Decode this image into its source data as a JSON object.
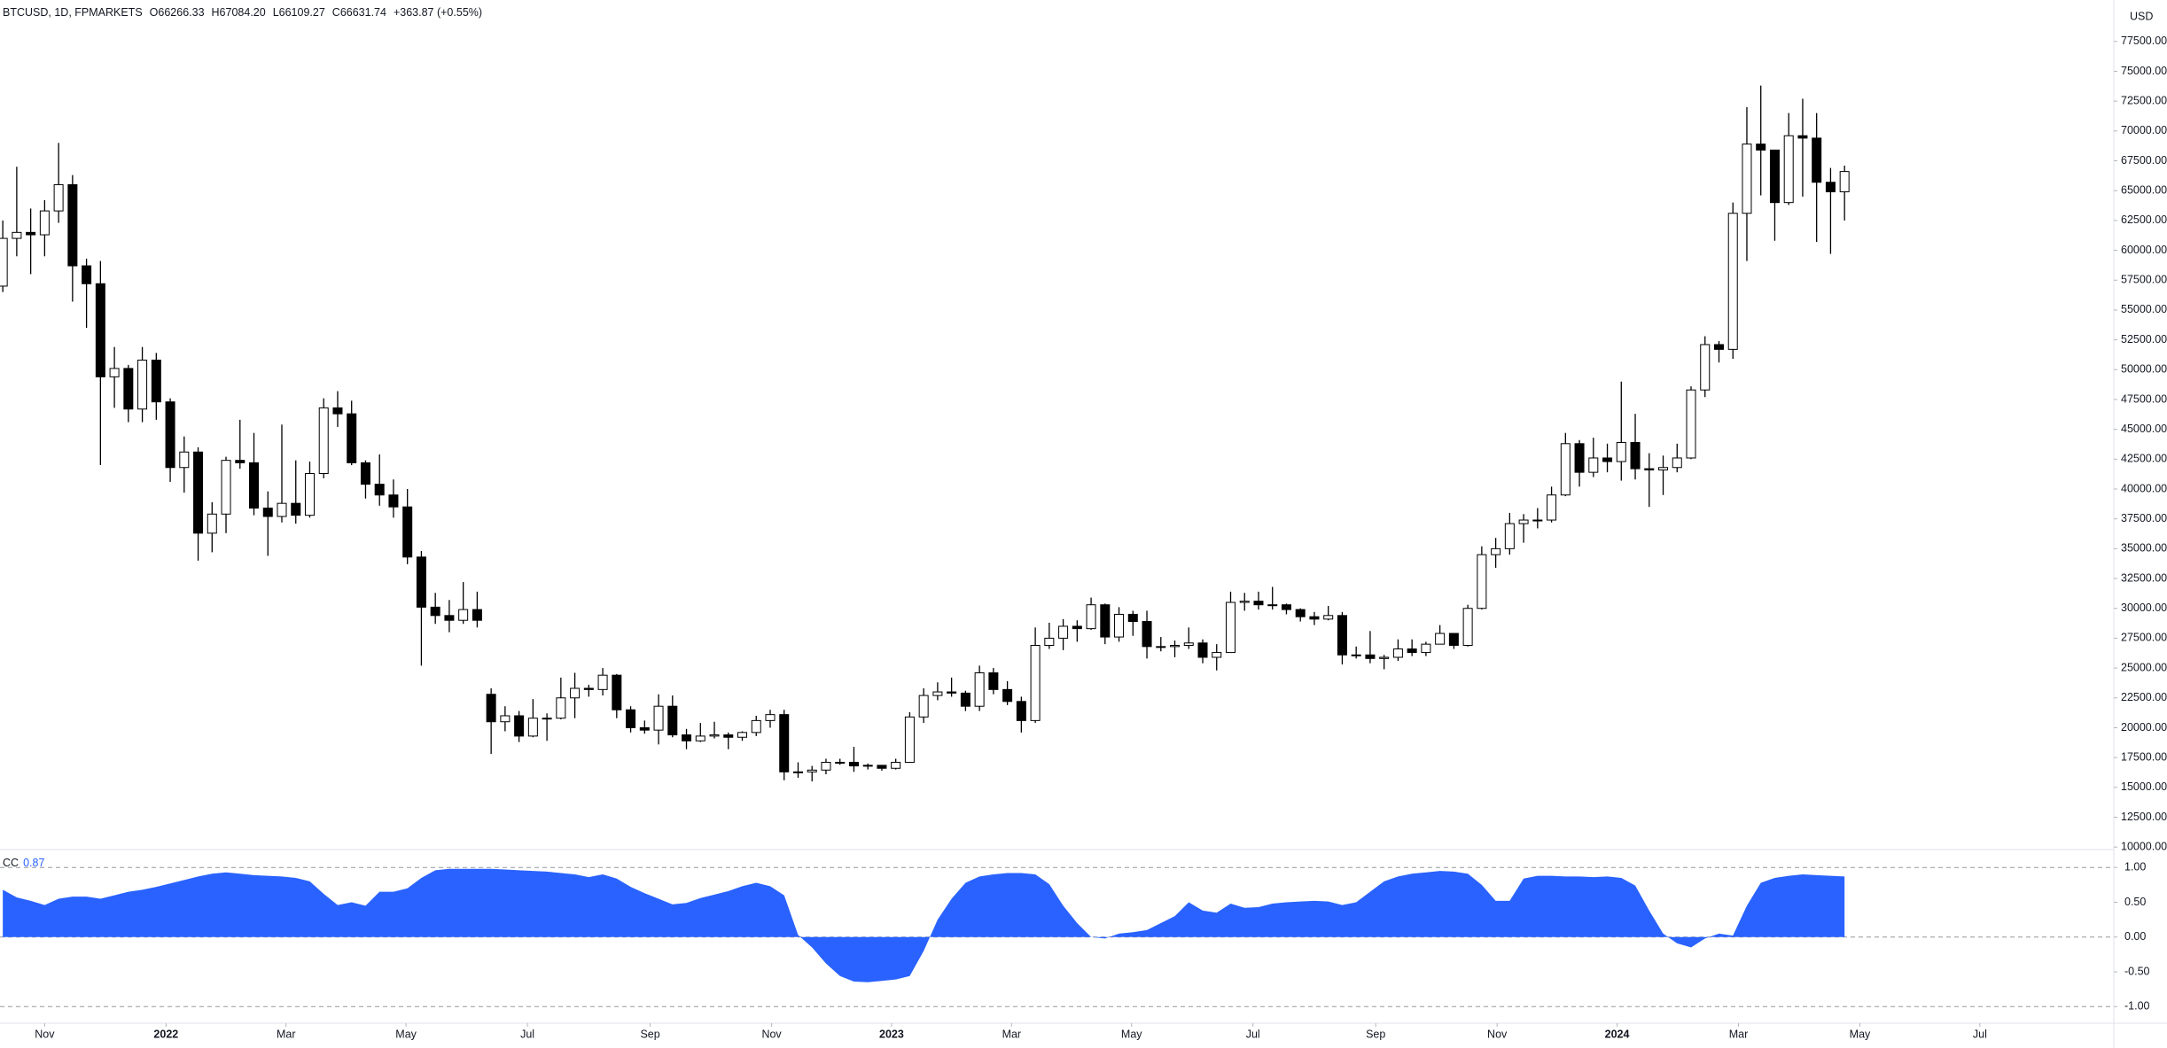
{
  "chart_data": [
    {
      "type": "candlestick",
      "symbol": "BTCUSD, 1D, FPMARKETS",
      "ohlc_text": [
        "O66266.33",
        "H67084.20",
        "L66109.27",
        "C66631.74",
        "+363.87 (+0.55%)"
      ],
      "currency": "USD",
      "up_color": "#ffffff",
      "down_color": "#000000",
      "wick_color": "#000000",
      "open": [
        57000,
        61000,
        61500,
        61300,
        63300,
        65500,
        58700,
        57200,
        49400,
        50100,
        46700,
        50800,
        47300,
        41800,
        43100,
        36300,
        37900,
        42400,
        42200,
        38400,
        37700,
        38800,
        37800,
        41300,
        46800,
        46300,
        42200,
        40400,
        39500,
        38500,
        34300,
        30100,
        29400,
        29000,
        29900,
        22800,
        20500,
        21000,
        19300,
        20800,
        20800,
        22500,
        23300,
        23200,
        24400,
        21500,
        20000,
        19800,
        21800,
        19400,
        18900,
        19300,
        19400,
        19200,
        19600,
        20600,
        21100,
        16300,
        16300,
        16450,
        17100,
        17100,
        16800,
        16850,
        16600,
        17100,
        20900,
        22700,
        23000,
        22900,
        21800,
        24600,
        23200,
        22200,
        20600,
        26900,
        27500,
        28500,
        28300,
        30300,
        27600,
        29500,
        28900,
        26800,
        26800,
        26900,
        27100,
        25900,
        26300,
        30500,
        30600,
        30300,
        30300,
        29900,
        29300,
        29100,
        29400,
        26100,
        26100,
        25800,
        25900,
        26600,
        26300,
        27000,
        27900,
        26900,
        30000,
        34500,
        35000,
        37100,
        37400,
        37400,
        39500,
        43800,
        41400,
        42600,
        42300,
        43900,
        41700,
        41600,
        41800,
        42600,
        48300,
        52100,
        51700,
        63100,
        68900,
        68400,
        64000,
        69600,
        69400,
        65700,
        64900
      ],
      "high": [
        62500,
        67000,
        63500,
        64200,
        69000,
        66300,
        59300,
        59100,
        51900,
        50400,
        51900,
        51400,
        47600,
        44400,
        43500,
        38900,
        42700,
        45800,
        44700,
        39800,
        45400,
        42400,
        42300,
        47600,
        48200,
        47400,
        42400,
        42900,
        40800,
        40000,
        34800,
        31300,
        30700,
        32200,
        31400,
        23300,
        21800,
        21400,
        22400,
        21200,
        24200,
        24600,
        23600,
        25000,
        24500,
        21800,
        20600,
        22800,
        22700,
        19900,
        20400,
        20500,
        19600,
        19700,
        21000,
        21500,
        21500,
        17100,
        16800,
        17400,
        17400,
        18400,
        17000,
        16800,
        17400,
        21300,
        23300,
        23800,
        24200,
        23100,
        25200,
        25000,
        23900,
        22600,
        28400,
        28800,
        29100,
        29000,
        30900,
        30400,
        30100,
        29800,
        29800,
        27600,
        27300,
        28400,
        27400,
        27000,
        31400,
        31300,
        31400,
        31800,
        30400,
        30000,
        29700,
        30200,
        29700,
        26800,
        28100,
        26100,
        27400,
        27400,
        27200,
        28600,
        27900,
        30300,
        35200,
        35900,
        38000,
        37900,
        38400,
        40200,
        44700,
        44100,
        44300,
        43800,
        49000,
        46300,
        43000,
        42800,
        43800,
        48600,
        52800,
        52400,
        64000,
        72000,
        73800,
        68100,
        71500,
        72700,
        71500,
        66900,
        67100
      ],
      "low": [
        56500,
        59500,
        58000,
        59500,
        62300,
        55700,
        53500,
        42000,
        46800,
        45600,
        45600,
        45800,
        40600,
        39700,
        34000,
        34700,
        36300,
        41700,
        37800,
        34400,
        37200,
        37100,
        37600,
        40900,
        45200,
        42000,
        39200,
        38600,
        37600,
        33700,
        25200,
        28700,
        28000,
        28700,
        28400,
        17800,
        19700,
        18800,
        19200,
        18900,
        20700,
        20800,
        22600,
        22700,
        20800,
        19600,
        19500,
        18600,
        19200,
        18200,
        18800,
        19100,
        18200,
        18900,
        19300,
        20000,
        15600,
        15800,
        15500,
        16100,
        16900,
        16300,
        16500,
        16400,
        16500,
        17100,
        20400,
        22300,
        22600,
        21400,
        21400,
        22800,
        21900,
        19600,
        20400,
        26600,
        26500,
        27200,
        28200,
        27000,
        27200,
        27700,
        25800,
        26400,
        25900,
        26600,
        25400,
        24800,
        26300,
        29800,
        29900,
        29900,
        29500,
        28900,
        28600,
        29000,
        25300,
        25800,
        25400,
        24900,
        25600,
        26000,
        26000,
        27000,
        26600,
        26800,
        29900,
        33400,
        34500,
        35500,
        36700,
        37200,
        39400,
        40200,
        41000,
        41400,
        40700,
        40800,
        38500,
        39500,
        41400,
        42500,
        47700,
        50600,
        50900,
        59100,
        64600,
        60800,
        63800,
        64500,
        60700,
        59700,
        62500
      ],
      "close": [
        61000,
        61500,
        61300,
        63300,
        65500,
        58700,
        57200,
        49400,
        50100,
        46700,
        50800,
        47300,
        41800,
        43100,
        36300,
        37900,
        42400,
        42200,
        38400,
        37700,
        38800,
        37800,
        41300,
        46800,
        46300,
        42200,
        40400,
        39500,
        38500,
        34300,
        30100,
        29400,
        29000,
        29900,
        29000,
        20500,
        21000,
        19300,
        20800,
        20800,
        22500,
        23300,
        23200,
        24400,
        21500,
        20000,
        19800,
        21800,
        19400,
        18900,
        19300,
        19400,
        19200,
        19600,
        20600,
        21100,
        16300,
        16300,
        16450,
        17100,
        17100,
        16800,
        16850,
        16600,
        17100,
        20900,
        22700,
        23000,
        22900,
        21800,
        24600,
        23200,
        22200,
        20600,
        26900,
        27500,
        28500,
        28300,
        30300,
        27600,
        29500,
        28900,
        26800,
        26800,
        26900,
        27100,
        25900,
        26300,
        30500,
        30600,
        30300,
        30300,
        29900,
        29300,
        29100,
        29400,
        26100,
        26100,
        25800,
        25900,
        26600,
        26300,
        27000,
        27900,
        26900,
        30000,
        34500,
        35000,
        37100,
        37400,
        37400,
        39500,
        43800,
        41400,
        42600,
        42300,
        43900,
        41700,
        41600,
        41800,
        42600,
        48300,
        52100,
        51700,
        63100,
        68900,
        68400,
        64000,
        69600,
        69400,
        65700,
        64900,
        66600
      ],
      "xlim": [
        -0.2,
        151.3
      ],
      "ylim": [
        9791,
        80972
      ],
      "yticks": [
        {
          "value": 77500,
          "label": "77500.00"
        },
        {
          "value": 75000,
          "label": "75000.00"
        },
        {
          "value": 72500,
          "label": "72500.00"
        },
        {
          "value": 70000,
          "label": "70000.00"
        },
        {
          "value": 67500,
          "label": "67500.00"
        },
        {
          "value": 65000,
          "label": "65000.00"
        },
        {
          "value": 62500,
          "label": "62500.00"
        },
        {
          "value": 60000,
          "label": "60000.00"
        },
        {
          "value": 57500,
          "label": "57500.00"
        },
        {
          "value": 55000,
          "label": "55000.00"
        },
        {
          "value": 52500,
          "label": "52500.00"
        },
        {
          "value": 50000,
          "label": "50000.00"
        },
        {
          "value": 47500,
          "label": "47500.00"
        },
        {
          "value": 45000,
          "label": "45000.00"
        },
        {
          "value": 42500,
          "label": "42500.00"
        },
        {
          "value": 40000,
          "label": "40000.00"
        },
        {
          "value": 37500,
          "label": "37500.00"
        },
        {
          "value": 35000,
          "label": "35000.00"
        },
        {
          "value": 32500,
          "label": "32500.00"
        },
        {
          "value": 30000,
          "label": "30000.00"
        },
        {
          "value": 27500,
          "label": "27500.00"
        },
        {
          "value": 25000,
          "label": "25000.00"
        },
        {
          "value": 22500,
          "label": "22500.00"
        },
        {
          "value": 20000,
          "label": "20000.00"
        },
        {
          "value": 17500,
          "label": "17500.00"
        },
        {
          "value": 15000,
          "label": "15000.00"
        },
        {
          "value": 12500,
          "label": "12500.00"
        },
        {
          "value": 10000,
          "label": "10000.00"
        }
      ]
    },
    {
      "type": "area",
      "name": "CC",
      "color": "#2962ff",
      "values": [
        0.68,
        0.57,
        0.52,
        0.46,
        0.55,
        0.58,
        0.58,
        0.55,
        0.6,
        0.65,
        0.68,
        0.72,
        0.77,
        0.82,
        0.87,
        0.91,
        0.93,
        0.91,
        0.89,
        0.88,
        0.87,
        0.85,
        0.8,
        0.62,
        0.46,
        0.5,
        0.45,
        0.65,
        0.65,
        0.7,
        0.85,
        0.96,
        0.98,
        0.98,
        0.98,
        0.98,
        0.97,
        0.96,
        0.95,
        0.94,
        0.92,
        0.9,
        0.86,
        0.9,
        0.84,
        0.72,
        0.63,
        0.55,
        0.47,
        0.49,
        0.56,
        0.61,
        0.66,
        0.73,
        0.78,
        0.73,
        0.6,
        0.03,
        -0.15,
        -0.38,
        -0.56,
        -0.64,
        -0.65,
        -0.63,
        -0.61,
        -0.56,
        -0.2,
        0.25,
        0.55,
        0.78,
        0.87,
        0.9,
        0.92,
        0.92,
        0.9,
        0.76,
        0.45,
        0.2,
        0.0,
        -0.02,
        0.05,
        0.07,
        0.1,
        0.2,
        0.3,
        0.5,
        0.38,
        0.35,
        0.48,
        0.42,
        0.43,
        0.48,
        0.5,
        0.51,
        0.52,
        0.51,
        0.46,
        0.5,
        0.65,
        0.8,
        0.87,
        0.91,
        0.93,
        0.95,
        0.94,
        0.91,
        0.75,
        0.52,
        0.52,
        0.84,
        0.88,
        0.88,
        0.87,
        0.87,
        0.86,
        0.87,
        0.85,
        0.74,
        0.38,
        0.05,
        -0.09,
        -0.15,
        -0.02,
        0.05,
        0.02,
        0.45,
        0.78,
        0.85,
        0.88,
        0.9,
        0.89,
        0.88,
        0.87
      ],
      "xlim": [
        -0.2,
        151.3
      ],
      "ylim": [
        -1.238,
        1.257
      ],
      "yticks": [
        {
          "value": 1,
          "label": "1.00"
        },
        {
          "value": 0.5,
          "label": "0.50"
        },
        {
          "value": 0,
          "label": "0.00"
        },
        {
          "value": -0.5,
          "label": "-0.50"
        },
        {
          "value": -1,
          "label": "-1.00"
        }
      ],
      "hlines": [
        1,
        0,
        -1
      ],
      "xticks": [
        {
          "value": 3,
          "label": "Nov"
        },
        {
          "value": 11.7,
          "label": "2022"
        },
        {
          "value": 20.3,
          "label": "Mar"
        },
        {
          "value": 28.9,
          "label": "May"
        },
        {
          "value": 37.6,
          "label": "Jul"
        },
        {
          "value": 46.4,
          "label": "Sep"
        },
        {
          "value": 55.1,
          "label": "Nov"
        },
        {
          "value": 63.7,
          "label": "2023"
        },
        {
          "value": 72.3,
          "label": "Mar"
        },
        {
          "value": 80.9,
          "label": "May"
        },
        {
          "value": 89.6,
          "label": "Jul"
        },
        {
          "value": 98.4,
          "label": "Sep"
        },
        {
          "value": 107.1,
          "label": "Nov"
        },
        {
          "value": 115.7,
          "label": "2024"
        },
        {
          "value": 124.4,
          "label": "Mar"
        },
        {
          "value": 133.1,
          "label": "May"
        },
        {
          "value": 141.7,
          "label": "Jul"
        }
      ]
    }
  ]
}
